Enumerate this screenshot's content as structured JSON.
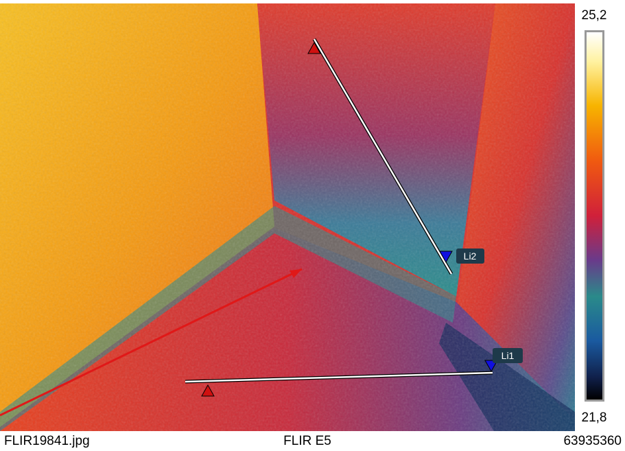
{
  "scale": {
    "max": "25,2",
    "min": "21,8"
  },
  "measurements": [
    {
      "label": "Li1"
    },
    {
      "label": "Li2"
    }
  ],
  "footer": {
    "filename": "FLIR19841.jpg",
    "camera": "FLIR E5",
    "serial": "63935360"
  }
}
